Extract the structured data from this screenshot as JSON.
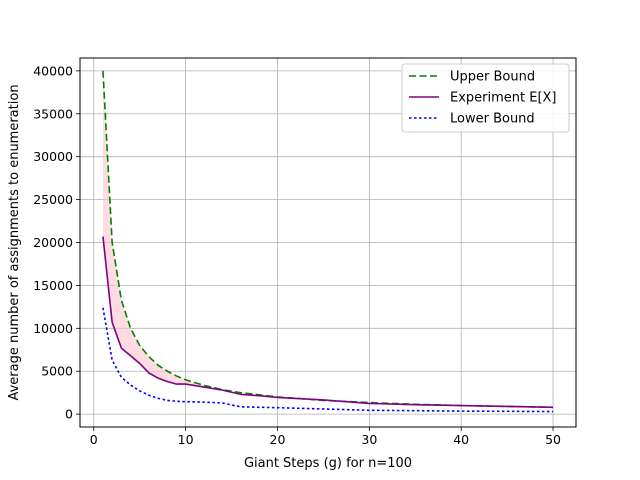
{
  "chart_data": {
    "type": "line",
    "xlabel": "Giant Steps (g) for n=100",
    "ylabel": "Average number of assignments to enumeration",
    "xlim": [
      -1.5,
      52.5
    ],
    "ylim": [
      -1500,
      41500
    ],
    "xticks": [
      0,
      10,
      20,
      30,
      40,
      50
    ],
    "yticks": [
      0,
      5000,
      10000,
      15000,
      20000,
      25000,
      30000,
      35000,
      40000
    ],
    "grid": true,
    "legend_position": "upper-right",
    "x": [
      1,
      2,
      3,
      4,
      5,
      6,
      7,
      8,
      9,
      10,
      12,
      14,
      16,
      18,
      20,
      25,
      30,
      35,
      40,
      45,
      50
    ],
    "series": [
      {
        "name": "Upper Bound",
        "color": "#008000",
        "style": "dashed",
        "values": [
          40000,
          20000,
          13300,
          10000,
          8000,
          6700,
          5700,
          5000,
          4450,
          4000,
          3350,
          2850,
          2500,
          2250,
          2000,
          1600,
          1350,
          1150,
          1000,
          900,
          800
        ]
      },
      {
        "name": "Experiment E[X]",
        "color": "#800080",
        "style": "solid",
        "values": [
          20700,
          10700,
          7700,
          6800,
          5900,
          4800,
          4200,
          3800,
          3500,
          3500,
          3150,
          2800,
          2300,
          2150,
          1950,
          1650,
          1250,
          1100,
          1000,
          900,
          800
        ]
      },
      {
        "name": "Lower Bound",
        "color": "#0000ff",
        "style": "dotted",
        "values": [
          12400,
          6300,
          4300,
          3400,
          2700,
          2200,
          1850,
          1600,
          1500,
          1450,
          1400,
          1300,
          850,
          800,
          750,
          600,
          450,
          400,
          350,
          330,
          300
        ]
      }
    ],
    "fill_between": {
      "lower": "Experiment E[X]",
      "upper": "Upper Bound",
      "color": "#ffc0cb",
      "opacity": 0.55
    }
  }
}
